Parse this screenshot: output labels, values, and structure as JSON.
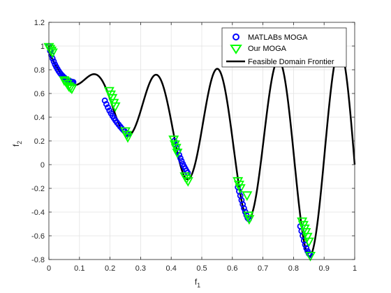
{
  "chart_data": {
    "type": "scatter",
    "xlabel": "f",
    "xlabel_sub": "1",
    "ylabel": "f",
    "ylabel_sub": "2",
    "xlim": [
      0,
      1
    ],
    "ylim": [
      -0.8,
      1.2
    ],
    "xticks": [
      0,
      0.1,
      0.2,
      0.3,
      0.4,
      0.5,
      0.6,
      0.7,
      0.8,
      0.9,
      1
    ],
    "xtick_labels": [
      "0",
      "0.1",
      "0.2",
      "0.3",
      "0.4",
      "0.5",
      "0.6",
      "0.7",
      "0.8",
      "0.9",
      "1"
    ],
    "yticks": [
      -0.8,
      -0.6,
      -0.4,
      -0.2,
      0,
      0.2,
      0.4,
      0.6,
      0.8,
      1,
      1.2
    ],
    "ytick_labels": [
      "-0.8",
      "-0.6",
      "-0.4",
      "-0.2",
      "0",
      "0.2",
      "0.4",
      "0.6",
      "0.8",
      "1",
      "1.2"
    ],
    "grid": true,
    "legend_position": "top-right",
    "series": [
      {
        "name": "MATLABs MOGA",
        "marker": "circle",
        "color": "#0000ff",
        "x": [
          0.0,
          0.004,
          0.008,
          0.012,
          0.016,
          0.02,
          0.024,
          0.028,
          0.032,
          0.036,
          0.04,
          0.044,
          0.048,
          0.052,
          0.056,
          0.06,
          0.064,
          0.068,
          0.072,
          0.076,
          0.08,
          0.183,
          0.188,
          0.193,
          0.198,
          0.203,
          0.208,
          0.213,
          0.218,
          0.223,
          0.228,
          0.233,
          0.238,
          0.243,
          0.248,
          0.253,
          0.258,
          0.41,
          0.414,
          0.418,
          0.422,
          0.426,
          0.43,
          0.434,
          0.438,
          0.442,
          0.446,
          0.45,
          0.454,
          0.618,
          0.622,
          0.626,
          0.63,
          0.634,
          0.638,
          0.642,
          0.646,
          0.65,
          0.654,
          0.822,
          0.826,
          0.83,
          0.834,
          0.838,
          0.842,
          0.846,
          0.85,
          0.854
        ],
        "y": [
          1.0,
          0.96,
          0.925,
          0.895,
          0.87,
          0.845,
          0.825,
          0.806,
          0.789,
          0.774,
          0.761,
          0.75,
          0.74,
          0.731,
          0.723,
          0.716,
          0.71,
          0.705,
          0.701,
          0.698,
          0.696,
          0.54,
          0.51,
          0.482,
          0.456,
          0.433,
          0.411,
          0.391,
          0.372,
          0.354,
          0.338,
          0.322,
          0.307,
          0.293,
          0.28,
          0.268,
          0.257,
          0.2,
          0.17,
          0.14,
          0.11,
          0.082,
          0.055,
          0.03,
          0.006,
          -0.015,
          -0.034,
          -0.052,
          -0.068,
          -0.19,
          -0.225,
          -0.262,
          -0.3,
          -0.335,
          -0.368,
          -0.398,
          -0.426,
          -0.45,
          -0.46,
          -0.52,
          -0.56,
          -0.6,
          -0.64,
          -0.675,
          -0.705,
          -0.73,
          -0.75,
          -0.762
        ]
      },
      {
        "name": "Our MOGA",
        "marker": "triangle-down",
        "color": "#00ff00",
        "x": [
          0.0,
          0.004,
          0.008,
          0.012,
          0.05,
          0.055,
          0.06,
          0.065,
          0.07,
          0.075,
          0.197,
          0.202,
          0.207,
          0.212,
          0.217,
          0.25,
          0.255,
          0.258,
          0.408,
          0.412,
          0.416,
          0.42,
          0.445,
          0.45,
          0.455,
          0.618,
          0.622,
          0.626,
          0.648,
          0.652,
          0.655,
          0.828,
          0.832,
          0.836,
          0.84,
          0.845,
          0.85,
          0.855
        ],
        "y": [
          0.99,
          0.975,
          0.96,
          0.945,
          0.71,
          0.7,
          0.68,
          0.66,
          0.65,
          0.64,
          0.62,
          0.59,
          0.56,
          0.52,
          0.49,
          0.28,
          0.25,
          0.23,
          0.21,
          0.17,
          0.14,
          0.1,
          -0.1,
          -0.12,
          -0.14,
          -0.14,
          -0.17,
          -0.2,
          -0.26,
          -0.43,
          -0.46,
          -0.48,
          -0.51,
          -0.54,
          -0.57,
          -0.61,
          -0.65,
          -0.77
        ]
      },
      {
        "name": "Feasible Domain Frontier",
        "marker": "line",
        "color": "#000000",
        "formula": "f2 = 1 - sqrt(f1) - f1*sin(10*pi*f1)",
        "x_range": [
          0,
          1
        ],
        "samples": 400
      }
    ]
  }
}
